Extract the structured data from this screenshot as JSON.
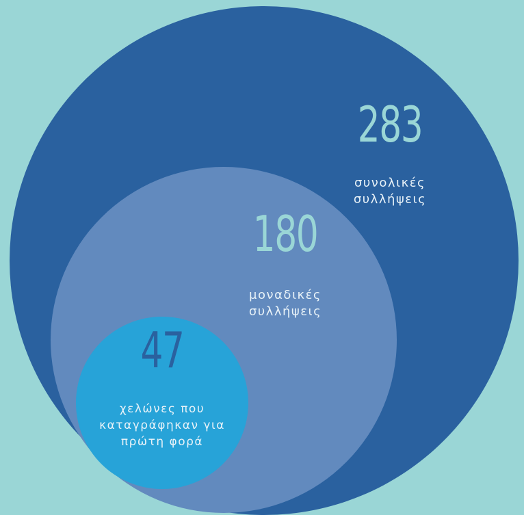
{
  "colors": {
    "background": "#9ad6d6",
    "outer_circle": "#2a619f",
    "middle_circle": "#628abe",
    "inner_circle": "#27a3d8",
    "number_teal": "#9ad6d6",
    "text_light": "#e8f2f8",
    "number_inner": "#2a619f"
  },
  "sets": [
    {
      "value": "283",
      "label_line1": "συνολικές",
      "label_line2": "συλλήψεις"
    },
    {
      "value": "180",
      "label_line1": "μοναδικές",
      "label_line2": "συλλήψεις"
    },
    {
      "value": "47",
      "label_line1": "χελώνες που",
      "label_line2": "καταγράφηκαν για",
      "label_line3": "πρώτη φορά"
    }
  ]
}
